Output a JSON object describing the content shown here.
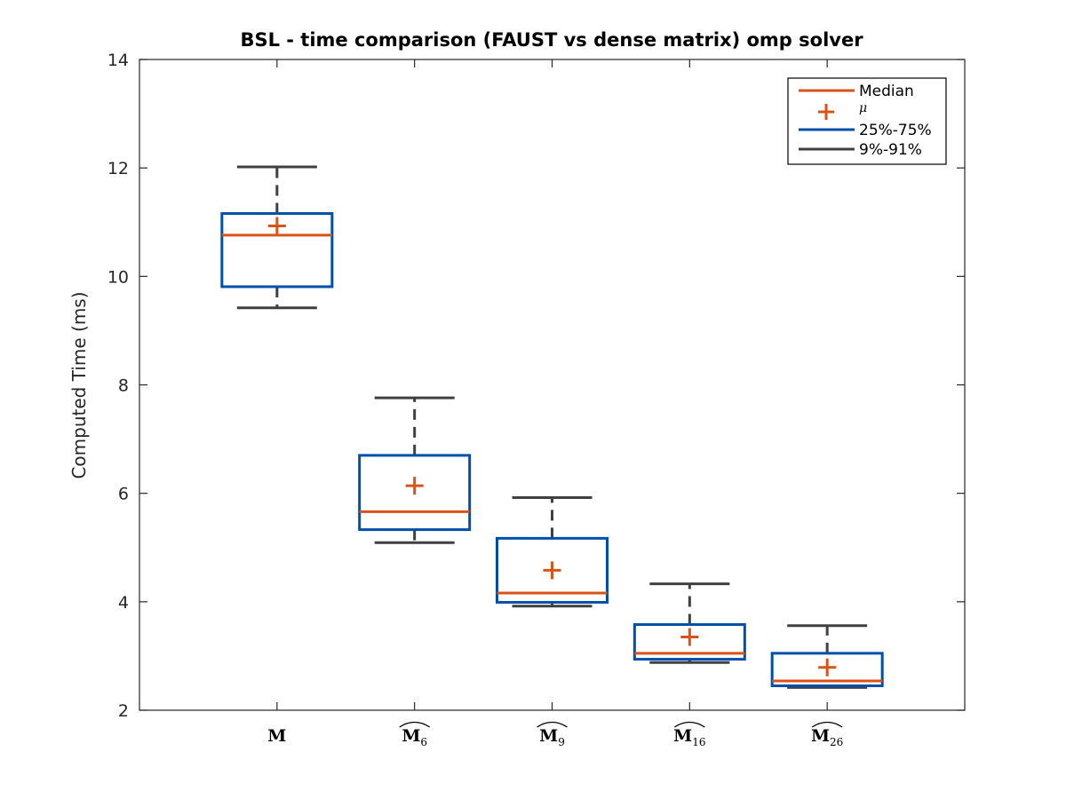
{
  "chart_data": {
    "type": "box",
    "title": "BSL - time comparison (FAUST vs dense matrix) omp solver",
    "xlabel": "",
    "ylabel": "Computed Time (ms)",
    "ylim": [
      2,
      14
    ],
    "yticks": [
      "2",
      "4",
      "6",
      "8",
      "10",
      "12",
      "14"
    ],
    "categories": [
      {
        "base": "M",
        "sub": "",
        "hat": false
      },
      {
        "base": "M",
        "sub": "6",
        "hat": true
      },
      {
        "base": "M",
        "sub": "9",
        "hat": true
      },
      {
        "base": "M",
        "sub": "16",
        "hat": true
      },
      {
        "base": "M",
        "sub": "26",
        "hat": true
      }
    ],
    "boxes": [
      {
        "whisker_low": 9.42,
        "q1": 9.81,
        "median": 10.76,
        "q3": 11.16,
        "whisker_high": 12.02,
        "mean": 10.93
      },
      {
        "whisker_low": 5.09,
        "q1": 5.33,
        "median": 5.66,
        "q3": 6.7,
        "whisker_high": 7.76,
        "mean": 6.14
      },
      {
        "whisker_low": 3.92,
        "q1": 3.99,
        "median": 4.16,
        "q3": 5.17,
        "whisker_high": 5.92,
        "mean": 4.58
      },
      {
        "whisker_low": 2.88,
        "q1": 2.94,
        "median": 3.05,
        "q3": 3.58,
        "whisker_high": 4.33,
        "mean": 3.35
      },
      {
        "whisker_low": 2.42,
        "q1": 2.45,
        "median": 2.54,
        "q3": 3.05,
        "whisker_high": 3.56,
        "mean": 2.79
      }
    ],
    "legend": {
      "placement": "top-right",
      "entries": [
        {
          "label": "Median",
          "kind": "line",
          "color": "#D95319"
        },
        {
          "label": "μ",
          "kind": "plus",
          "color": "#D95319"
        },
        {
          "label": "25%-75%",
          "kind": "line",
          "color": "#0050AA"
        },
        {
          "label": "9%-91%",
          "kind": "line",
          "color": "#404040"
        }
      ]
    },
    "colors": {
      "median": "#D95319",
      "mean": "#D95319",
      "box": "#0050AA",
      "whisker": "#404040",
      "axis": "#262626"
    },
    "grid": false
  }
}
